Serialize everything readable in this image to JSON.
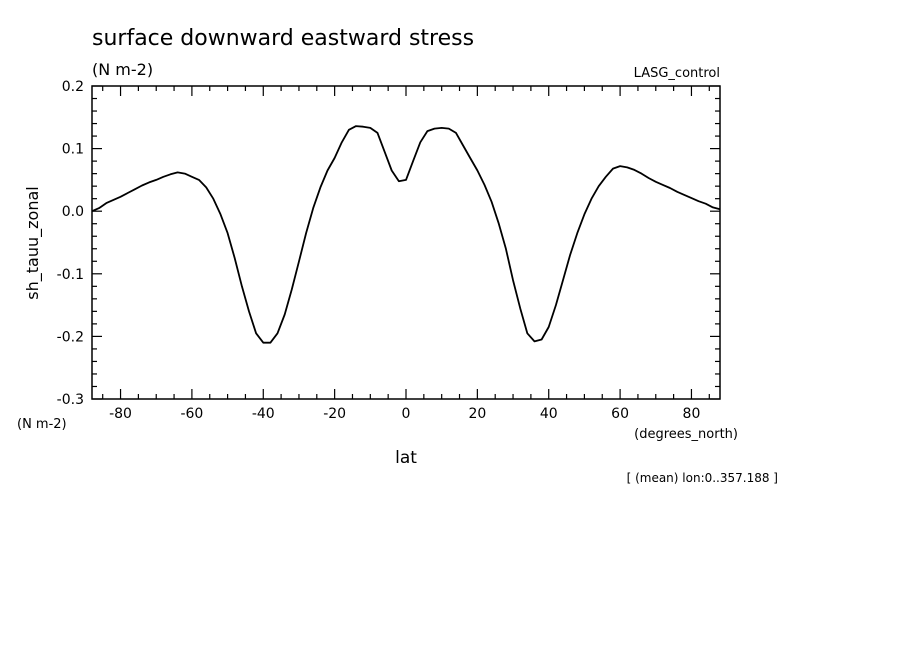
{
  "chart_data": {
    "type": "line",
    "title": "surface downward eastward stress",
    "subtitle": "(N m-2)",
    "dataset_label": "LASG_control",
    "xlabel": "lat",
    "xunits": "(degrees_north)",
    "ylabel": "sh_tauu_zonal",
    "yunits": "(N m-2)",
    "footnote": "[ (mean) lon:0..357.188 ]",
    "xlim": [
      -88,
      88
    ],
    "ylim": [
      -0.3,
      0.2
    ],
    "xticks": [
      -80,
      -60,
      -40,
      -20,
      0,
      20,
      40,
      60,
      80
    ],
    "xtick_labels": [
      "-80",
      "-60",
      "-40",
      "-20",
      "0",
      "20",
      "40",
      "60",
      "80"
    ],
    "yticks": [
      -0.3,
      -0.2,
      -0.1,
      0.0,
      0.1,
      0.2
    ],
    "ytick_labels": [
      "-0.3",
      "-0.2",
      "-0.1",
      "0.0",
      "0.1",
      "0.2"
    ],
    "grid": false,
    "line_color": "#000000",
    "series": [
      {
        "x": [
          -88,
          -86,
          -84,
          -82,
          -80,
          -78,
          -76,
          -74,
          -72,
          -70,
          -68,
          -66,
          -64,
          -62,
          -60,
          -58,
          -56,
          -54,
          -52,
          -50,
          -48,
          -46,
          -44,
          -42,
          -40,
          -38,
          -36,
          -34,
          -32,
          -30,
          -28,
          -26,
          -24,
          -22,
          -20,
          -18,
          -16,
          -14,
          -12,
          -10,
          -8,
          -6,
          -4,
          -2,
          0,
          2,
          4,
          6,
          8,
          10,
          12,
          14,
          16,
          18,
          20,
          22,
          24,
          26,
          28,
          30,
          32,
          34,
          36,
          38,
          40,
          42,
          44,
          46,
          48,
          50,
          52,
          54,
          56,
          58,
          60,
          62,
          64,
          66,
          68,
          70,
          72,
          74,
          76,
          78,
          80,
          82,
          84,
          86,
          88
        ],
        "y": [
          0.0,
          0.005,
          0.013,
          0.018,
          0.023,
          0.029,
          0.035,
          0.041,
          0.046,
          0.05,
          0.055,
          0.059,
          0.062,
          0.06,
          0.055,
          0.05,
          0.038,
          0.02,
          -0.005,
          -0.035,
          -0.075,
          -0.12,
          -0.16,
          -0.195,
          -0.21,
          -0.21,
          -0.195,
          -0.165,
          -0.125,
          -0.08,
          -0.035,
          0.005,
          0.038,
          0.065,
          0.085,
          0.11,
          0.13,
          0.136,
          0.135,
          0.133,
          0.125,
          0.095,
          0.065,
          0.048,
          0.05,
          0.08,
          0.11,
          0.128,
          0.132,
          0.133,
          0.132,
          0.125,
          0.105,
          0.085,
          0.065,
          0.042,
          0.015,
          -0.02,
          -0.06,
          -0.11,
          -0.155,
          -0.195,
          -0.208,
          -0.205,
          -0.185,
          -0.15,
          -0.11,
          -0.07,
          -0.035,
          -0.005,
          0.02,
          0.04,
          0.055,
          0.068,
          0.072,
          0.07,
          0.066,
          0.06,
          0.053,
          0.047,
          0.042,
          0.037,
          0.031,
          0.026,
          0.021,
          0.016,
          0.012,
          0.006,
          0.003
        ]
      }
    ]
  }
}
